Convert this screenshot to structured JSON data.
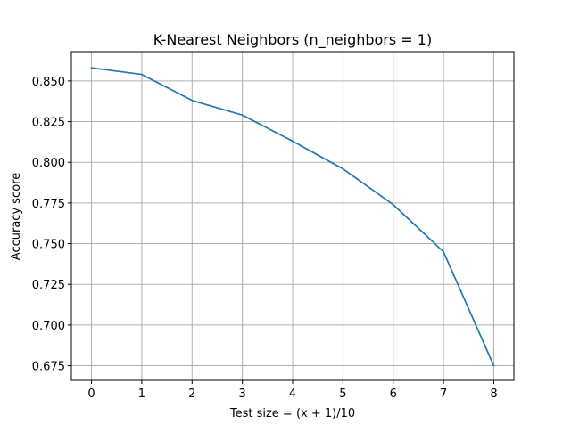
{
  "chart_data": {
    "type": "line",
    "title": "K-Nearest Neighbors (n_neighbors = 1)",
    "xlabel": "Test size = (x + 1)/10",
    "ylabel": "Accuracy score",
    "x": [
      0,
      1,
      2,
      3,
      4,
      5,
      6,
      7,
      8
    ],
    "series": [
      {
        "values": [
          0.858,
          0.854,
          0.838,
          0.829,
          0.813,
          0.796,
          0.774,
          0.745,
          0.675
        ],
        "color": "#1f77b4"
      }
    ],
    "xlim": [
      -0.4,
      8.4
    ],
    "ylim": [
      0.666,
      0.868
    ],
    "xticks": [
      0,
      1,
      2,
      3,
      4,
      5,
      6,
      7,
      8
    ],
    "xtick_labels": [
      "0",
      "1",
      "2",
      "3",
      "4",
      "5",
      "6",
      "7",
      "8"
    ],
    "yticks": [
      0.675,
      0.7,
      0.725,
      0.75,
      0.775,
      0.8,
      0.825,
      0.85
    ],
    "ytick_labels": [
      "0.675",
      "0.700",
      "0.725",
      "0.750",
      "0.775",
      "0.800",
      "0.825",
      "0.850"
    ],
    "grid": true,
    "legend": "none"
  }
}
